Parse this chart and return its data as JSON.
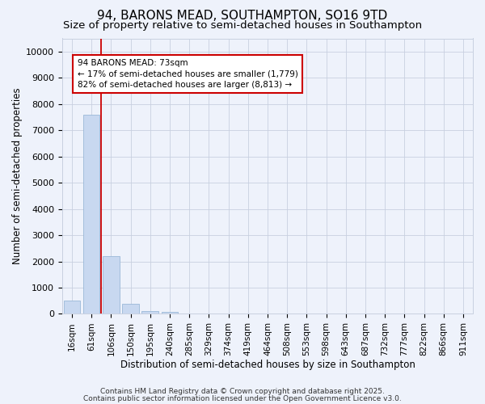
{
  "title": "94, BARONS MEAD, SOUTHAMPTON, SO16 9TD",
  "subtitle": "Size of property relative to semi-detached houses in Southampton",
  "xlabel": "Distribution of semi-detached houses by size in Southampton",
  "ylabel": "Number of semi-detached properties",
  "categories": [
    "16sqm",
    "61sqm",
    "106sqm",
    "150sqm",
    "195sqm",
    "240sqm",
    "285sqm",
    "329sqm",
    "374sqm",
    "419sqm",
    "464sqm",
    "508sqm",
    "553sqm",
    "598sqm",
    "643sqm",
    "687sqm",
    "732sqm",
    "777sqm",
    "822sqm",
    "866sqm",
    "911sqm"
  ],
  "values": [
    510,
    7600,
    2210,
    375,
    100,
    75,
    0,
    0,
    0,
    0,
    0,
    0,
    0,
    0,
    0,
    0,
    0,
    0,
    0,
    0,
    0
  ],
  "bar_color": "#c8d8f0",
  "bar_edge_color": "#9ab8d8",
  "red_line_x": 1.48,
  "annotation_text": "94 BARONS MEAD: 73sqm\n← 17% of semi-detached houses are smaller (1,779)\n82% of semi-detached houses are larger (8,813) →",
  "annotation_box_color": "#ffffff",
  "annotation_box_edge": "#cc0000",
  "red_line_color": "#cc0000",
  "ylim": [
    0,
    10500
  ],
  "yticks": [
    0,
    1000,
    2000,
    3000,
    4000,
    5000,
    6000,
    7000,
    8000,
    9000,
    10000
  ],
  "footer_line1": "Contains HM Land Registry data © Crown copyright and database right 2025.",
  "footer_line2": "Contains public sector information licensed under the Open Government Licence v3.0.",
  "bg_color": "#eef2fb",
  "plot_bg_color": "#eef2fb",
  "grid_color": "#c8d0e0",
  "title_fontsize": 11,
  "subtitle_fontsize": 9.5,
  "axis_label_fontsize": 8.5,
  "tick_fontsize": 7.5,
  "annot_fontsize": 7.5,
  "footer_fontsize": 6.5
}
